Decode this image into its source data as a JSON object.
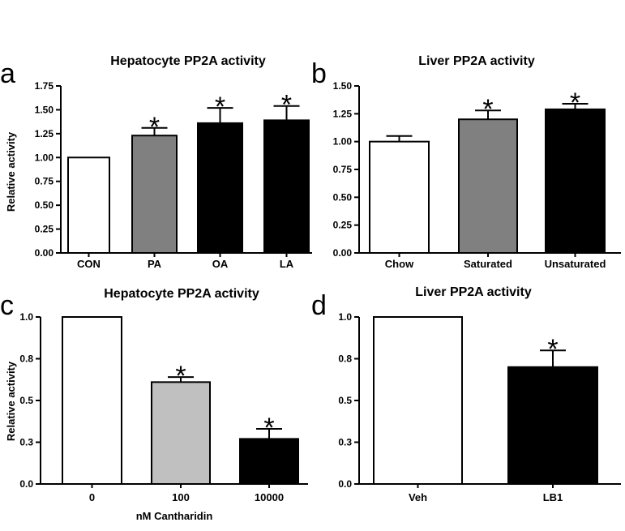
{
  "chart_data": [
    {
      "type": "bar",
      "panel_letter": "a",
      "title": "Hepatocyte PP2A activity",
      "xlabel": "",
      "ylabel": "Relative activity",
      "ylim": [
        0,
        1.75
      ],
      "yticks": [
        "0.00",
        "0.25",
        "0.50",
        "0.75",
        "1.00",
        "1.25",
        "1.50",
        "1.75"
      ],
      "categories": [
        "CON",
        "PA",
        "OA",
        "LA"
      ],
      "values": [
        1.0,
        1.23,
        1.36,
        1.39
      ],
      "errors": [
        0,
        0.08,
        0.16,
        0.15
      ],
      "colors": [
        "#ffffff",
        "#808080",
        "#000000",
        "#000000"
      ],
      "significance": [
        "",
        "*",
        "*",
        "*"
      ]
    },
    {
      "type": "bar",
      "panel_letter": "b",
      "title": "Liver PP2A activity",
      "xlabel": "",
      "ylabel": "",
      "ylim": [
        0,
        1.5
      ],
      "yticks": [
        "0.00",
        "0.25",
        "0.50",
        "0.75",
        "1.00",
        "1.25",
        "1.50"
      ],
      "categories": [
        "Chow",
        "Saturated",
        "Unsaturated"
      ],
      "values": [
        1.0,
        1.2,
        1.29
      ],
      "errors": [
        0.05,
        0.08,
        0.05
      ],
      "colors": [
        "#ffffff",
        "#808080",
        "#000000"
      ],
      "significance": [
        "",
        "*",
        "*"
      ]
    },
    {
      "type": "bar",
      "panel_letter": "c",
      "title": "Hepatocyte PP2A activity",
      "xlabel": "nM Cantharidin",
      "ylabel": "Relative activity",
      "ylim": [
        0,
        1.0
      ],
      "yticks": [
        "0.0",
        "0.3",
        "0.5",
        "0.8",
        "1.0"
      ],
      "categories": [
        "0",
        "100",
        "10000"
      ],
      "values": [
        1.0,
        0.61,
        0.27
      ],
      "errors": [
        0,
        0.03,
        0.06
      ],
      "colors": [
        "#ffffff",
        "#c0c0c0",
        "#000000"
      ],
      "significance": [
        "",
        "*",
        "*"
      ]
    },
    {
      "type": "bar",
      "panel_letter": "d",
      "title": "Liver PP2A activity",
      "xlabel": "",
      "ylabel": "",
      "ylim": [
        0,
        1.0
      ],
      "yticks": [
        "0.0",
        "0.3",
        "0.5",
        "0.8",
        "1.0"
      ],
      "categories": [
        "Veh",
        "LB1"
      ],
      "values": [
        1.0,
        0.7
      ],
      "errors": [
        0,
        0.1
      ],
      "colors": [
        "#ffffff",
        "#000000"
      ],
      "significance": [
        "",
        "*"
      ]
    }
  ]
}
